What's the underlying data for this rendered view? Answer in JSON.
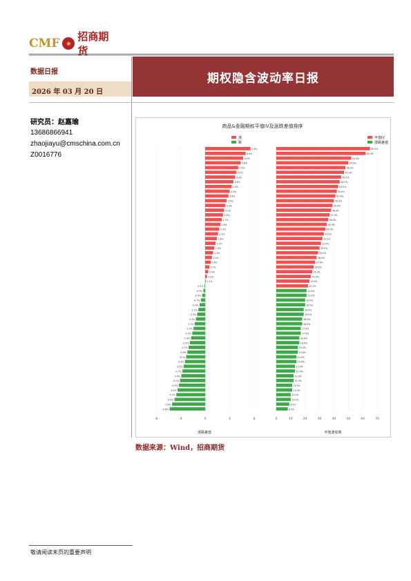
{
  "header": {
    "logo_cmf": "CMF",
    "logo_cn": "招商期货",
    "report_type": "数据日报",
    "date": "2026 年 03 月 20 日",
    "title": "期权隐含波动率日报"
  },
  "analyst": {
    "label": "研究员：赵嘉瑜",
    "phone": "13686866941",
    "email": "zhaojiayu@cmschina.com.cn",
    "id": "Z0016776"
  },
  "chart": {
    "title": "商品&金融期权平值IV及涨跌差值排序",
    "left_legend": [
      "涨",
      "跌"
    ],
    "right_legend": [
      "平值IV",
      "涨跌差值"
    ],
    "left_xlabel": "涨跌差值",
    "right_xlabel": "平值波动率"
  },
  "chart_data": [
    {
      "type": "bar",
      "title": "",
      "orientation": "horizontal",
      "xlabel": "涨跌差值",
      "xlim": [
        -8,
        8
      ],
      "values": [
        7.4,
        6.6,
        6.2,
        5.8,
        5.4,
        5.1,
        4.9,
        4.6,
        4.3,
        4.0,
        3.8,
        3.5,
        3.3,
        3.1,
        2.9,
        2.7,
        2.5,
        2.3,
        2.1,
        1.9,
        1.7,
        1.5,
        1.3,
        1.1,
        0.9,
        0.7,
        0.5,
        0.3,
        0.1,
        -0.1,
        -0.3,
        -0.5,
        -0.7,
        -0.9,
        -1.1,
        -1.3,
        -1.5,
        -1.7,
        -1.9,
        -2.1,
        -2.3,
        -2.5,
        -2.7,
        -2.9,
        -3.1,
        -3.3,
        -3.5,
        -3.7,
        -3.9,
        -4.1,
        -4.3,
        -4.5,
        -4.7,
        -5.0,
        -5.4,
        -5.8
      ]
    },
    {
      "type": "bar",
      "title": "",
      "orientation": "horizontal",
      "xlabel": "平值波动率",
      "xlim": [
        0,
        70
      ],
      "values": [
        65,
        62,
        52,
        50,
        48,
        47,
        45,
        44,
        43,
        42,
        41,
        40,
        39,
        38,
        37,
        36,
        35,
        34,
        33,
        32,
        31,
        30,
        29,
        28,
        27,
        26,
        25,
        24,
        23,
        22,
        21,
        21,
        20,
        20,
        19,
        19,
        18,
        18,
        17,
        17,
        16,
        16,
        15,
        15,
        14,
        14,
        13,
        13,
        12,
        12,
        11,
        11,
        10,
        10,
        9,
        8
      ],
      "series_split": 30
    }
  ],
  "source": "数据来源：Wind，招商期货",
  "footer": {
    "disclaimer": "敬请阅读末页的重要声明"
  }
}
